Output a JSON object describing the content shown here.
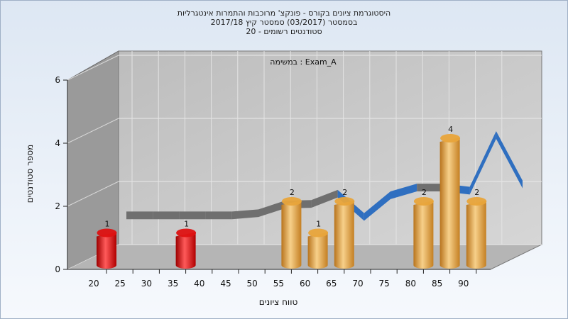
{
  "chart_data": {
    "type": "bar",
    "title_lines": [
      "היסטוגרמת ציונים בקורס - פונקצ' מרוכבות והתמרות אינטגרליות",
      "בסמסטר (03/2017) סמסטר קיץ 2017/18",
      "סטודנטים רשומים - 20"
    ],
    "subtitle": "במשימה : Exam_A",
    "xlabel": "טווח ציונים",
    "ylabel": "מספר סטודנטים",
    "x_ticks": [
      "20",
      "25",
      "30",
      "35",
      "40",
      "45",
      "50",
      "55",
      "60",
      "65",
      "70",
      "75",
      "80",
      "85",
      "90"
    ],
    "y_ticks": [
      0,
      2,
      4,
      6
    ],
    "ylim": [
      0,
      6
    ],
    "bars": [
      {
        "x": 20,
        "value": 1,
        "label": "1",
        "color": "#dd1111"
      },
      {
        "x": 35,
        "value": 1,
        "label": "1",
        "color": "#dd1111"
      },
      {
        "x": 55,
        "value": 2,
        "label": "2",
        "color": "#e8a43a"
      },
      {
        "x": 60,
        "value": 1,
        "label": "1",
        "color": "#e8a43a"
      },
      {
        "x": 65,
        "value": 2,
        "label": "2",
        "color": "#e8a43a"
      },
      {
        "x": 80,
        "value": 2,
        "label": "2",
        "color": "#e8a43a"
      },
      {
        "x": 85,
        "value": 4,
        "label": "4",
        "color": "#e8a43a"
      },
      {
        "x": 90,
        "value": 2,
        "label": "2",
        "color": "#e8a43a"
      }
    ],
    "curve": [
      {
        "x": 20,
        "y": 1.55
      },
      {
        "x": 25,
        "y": 1.55
      },
      {
        "x": 30,
        "y": 1.55
      },
      {
        "x": 35,
        "y": 1.55
      },
      {
        "x": 40,
        "y": 1.55
      },
      {
        "x": 45,
        "y": 1.62
      },
      {
        "x": 50,
        "y": 1.9
      },
      {
        "x": 55,
        "y": 1.92
      },
      {
        "x": 60,
        "y": 2.25
      },
      {
        "x": 65,
        "y": 1.5
      },
      {
        "x": 70,
        "y": 2.2
      },
      {
        "x": 75,
        "y": 2.45
      },
      {
        "x": 80,
        "y": 2.45
      },
      {
        "x": 85,
        "y": 2.35
      },
      {
        "x": 90,
        "y": 4.15
      },
      {
        "x": 95,
        "y": 2.55
      }
    ],
    "colors": {
      "wall": "#9a9a9a",
      "back_wall": "#c7c7c7",
      "floor": "#b5b5b5",
      "curve_back": "#6f6f6f",
      "curve_front": "#2f6fc0"
    },
    "grid": true
  }
}
